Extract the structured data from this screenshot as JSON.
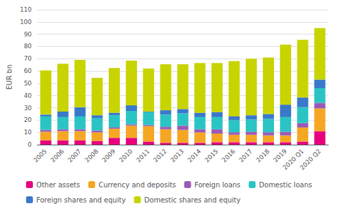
{
  "chart_data": {
    "type": "bar",
    "stacked": true,
    "categories": [
      "2005",
      "2006",
      "2007",
      "2008",
      "2009",
      "2010",
      "2011",
      "2012",
      "2013",
      "2014",
      "2015",
      "2016",
      "2017",
      "2018",
      "2019",
      "2020 Q1",
      "2020 Q2"
    ],
    "series": [
      {
        "name": "Other assets",
        "color": "#e6007e",
        "values": [
          3.5,
          3.5,
          3.5,
          3.0,
          5.5,
          5.5,
          2.5,
          1.5,
          1.5,
          1.5,
          2.0,
          2.0,
          2.0,
          2.0,
          2.0,
          2.5,
          11.0
        ]
      },
      {
        "name": "Currency and deposits",
        "color": "#f5a623",
        "values": [
          7.0,
          7.5,
          7.5,
          7.0,
          7.5,
          10.0,
          12.5,
          11.0,
          10.5,
          8.5,
          7.0,
          6.0,
          6.0,
          5.5,
          5.5,
          11.5,
          18.5
        ]
      },
      {
        "name": "Foreign loans",
        "color": "#9b59b6",
        "values": [
          1.5,
          1.5,
          1.5,
          1.5,
          1.0,
          1.0,
          1.0,
          2.0,
          3.5,
          2.5,
          3.5,
          2.0,
          2.5,
          2.5,
          3.0,
          3.5,
          4.5
        ]
      },
      {
        "name": "Domestic loans",
        "color": "#2bc4c4",
        "values": [
          11.0,
          10.0,
          10.5,
          10.0,
          10.0,
          11.0,
          10.5,
          10.0,
          10.0,
          10.0,
          10.0,
          10.0,
          10.0,
          11.0,
          12.0,
          13.0,
          12.0
        ]
      },
      {
        "name": "Foreign shares and equity",
        "color": "#3a78c9",
        "values": [
          1.5,
          4.5,
          7.5,
          2.5,
          2.0,
          4.5,
          0.5,
          3.5,
          3.5,
          3.5,
          4.0,
          3.0,
          3.5,
          4.0,
          10.0,
          8.0,
          7.0
        ]
      },
      {
        "name": "Domestic shares and equity",
        "color": "#c8d400",
        "values": [
          36.0,
          39.0,
          38.5,
          30.5,
          36.5,
          36.5,
          35.0,
          37.5,
          36.5,
          40.5,
          40.0,
          45.0,
          46.0,
          46.0,
          49.0,
          47.0,
          42.0
        ]
      }
    ],
    "ylabel": "EUR bn",
    "ylim": [
      0,
      110
    ],
    "yticks": [
      0,
      10,
      20,
      30,
      40,
      50,
      60,
      70,
      80,
      90,
      100,
      110
    ],
    "grid": true,
    "legend": "bottom"
  }
}
